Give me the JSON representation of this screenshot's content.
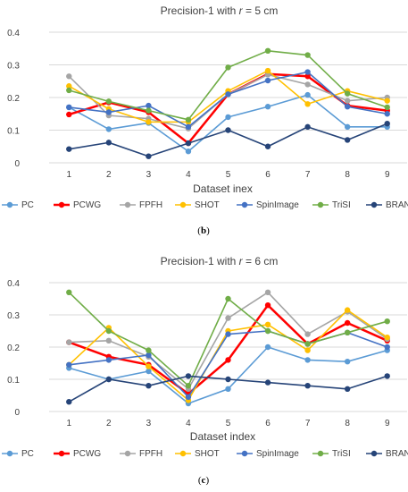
{
  "chart_data": [
    {
      "type": "line",
      "title": "Precision-1 with r = 5 cm",
      "title_prefix": "Precision-1 with ",
      "title_var": "r",
      "title_suffix": " = 5 cm",
      "xlabel": "Dataset inex",
      "ylabel": "",
      "caption_open": "(",
      "caption_letter": "b",
      "caption_close": ")",
      "x": [
        1,
        2,
        3,
        4,
        5,
        6,
        7,
        8,
        9
      ],
      "ylim": [
        0,
        0.4
      ],
      "yticks": [
        "0",
        "0.1",
        "0.2",
        "0.3",
        "0.4"
      ],
      "grid": true,
      "legend_position": "bottom",
      "series": [
        {
          "name": "PC",
          "color": "#5b9bd5",
          "values": [
            0.17,
            0.103,
            0.122,
            0.035,
            0.14,
            0.172,
            0.208,
            0.11,
            0.11
          ]
        },
        {
          "name": "PCWG",
          "color": "#ff0000",
          "values": [
            0.148,
            0.185,
            0.155,
            0.06,
            0.21,
            0.272,
            0.265,
            0.175,
            0.16
          ]
        },
        {
          "name": "FPFH",
          "color": "#a5a5a5",
          "values": [
            0.265,
            0.145,
            0.135,
            0.105,
            0.21,
            0.27,
            0.24,
            0.19,
            0.2
          ]
        },
        {
          "name": "SHOT",
          "color": "#ffc000",
          "values": [
            0.235,
            0.165,
            0.125,
            0.125,
            0.22,
            0.282,
            0.18,
            0.22,
            0.19
          ]
        },
        {
          "name": "SpinImage",
          "color": "#4472c4",
          "values": [
            0.17,
            0.155,
            0.175,
            0.11,
            0.21,
            0.252,
            0.278,
            0.172,
            0.15
          ]
        },
        {
          "name": "TriSI",
          "color": "#70ad47",
          "values": [
            0.222,
            0.188,
            0.16,
            0.132,
            0.292,
            0.343,
            0.33,
            0.212,
            0.17
          ]
        },
        {
          "name": "BRAND",
          "color": "#264478",
          "values": [
            0.042,
            0.062,
            0.02,
            0.06,
            0.1,
            0.05,
            0.11,
            0.07,
            0.12
          ]
        }
      ]
    },
    {
      "type": "line",
      "title": "Precision-1 with r = 6 cm",
      "title_prefix": "Precision-1 with ",
      "title_var": "r",
      "title_suffix": " = 6 cm",
      "xlabel": "Dataset index",
      "ylabel": "",
      "caption_open": "(",
      "caption_letter": "c",
      "caption_close": ")",
      "x": [
        1,
        2,
        3,
        4,
        5,
        6,
        7,
        8,
        9
      ],
      "ylim": [
        0,
        0.4
      ],
      "yticks": [
        "0",
        "0.1",
        "0.2",
        "0.3",
        "0.4"
      ],
      "grid": true,
      "legend_position": "bottom",
      "series": [
        {
          "name": "PC",
          "color": "#5b9bd5",
          "values": [
            0.135,
            0.1,
            0.125,
            0.025,
            0.07,
            0.2,
            0.16,
            0.155,
            0.19
          ]
        },
        {
          "name": "PCWG",
          "color": "#ff0000",
          "values": [
            0.215,
            0.17,
            0.145,
            0.055,
            0.16,
            0.33,
            0.21,
            0.275,
            0.22
          ]
        },
        {
          "name": "FPFH",
          "color": "#a5a5a5",
          "values": [
            0.215,
            0.22,
            0.17,
            0.07,
            0.29,
            0.37,
            0.24,
            0.31,
            0.225
          ]
        },
        {
          "name": "SHOT",
          "color": "#ffc000",
          "values": [
            0.145,
            0.26,
            0.14,
            0.035,
            0.25,
            0.27,
            0.19,
            0.315,
            0.23
          ]
        },
        {
          "name": "SpinImage",
          "color": "#4472c4",
          "values": [
            0.145,
            0.16,
            0.175,
            0.045,
            0.24,
            0.25,
            0.21,
            0.245,
            0.2
          ]
        },
        {
          "name": "TriSI",
          "color": "#70ad47",
          "values": [
            0.37,
            0.25,
            0.19,
            0.08,
            0.35,
            0.25,
            0.21,
            0.245,
            0.28
          ]
        },
        {
          "name": "BRAND",
          "color": "#264478",
          "values": [
            0.03,
            0.1,
            0.08,
            0.11,
            0.1,
            0.09,
            0.08,
            0.07,
            0.11
          ]
        }
      ]
    }
  ]
}
